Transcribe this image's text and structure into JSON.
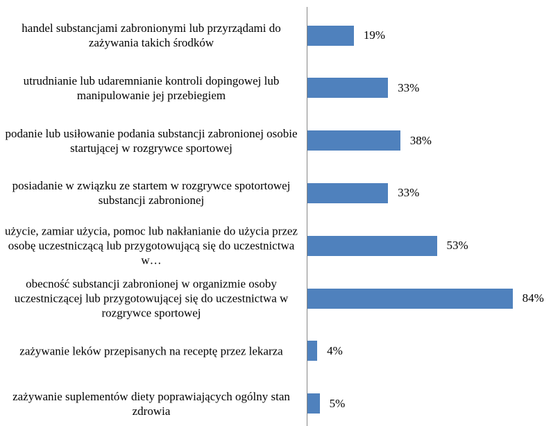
{
  "chart_data": {
    "type": "bar",
    "orientation": "horizontal",
    "color": "#4f81bd",
    "categories": [
      "handel substancjami zabronionymi lub przyrządami do zażywania takich środków",
      "utrudnianie lub udaremnianie kontroli dopingowej lub manipulowanie jej przebiegiem",
      "podanie lub usiłowanie podania substancji zabronionej osobie startującej w rozgrywce sportowej",
      "posiadanie w związku ze startem w rozgrywce spotortowej substancji zabronionej",
      "użycie, zamiar użycia, pomoc lub nakłanianie do użycia przez osobę uczestniczącą lub przygotowującą się do uczestnictwa w…",
      "obecność substancji zabronionej w organizmie osoby uczestniczącej lub przygotowującej się do uczestnictwa w rozgrywce sportowej",
      "zażywanie leków przepisanych na receptę przez lekarza",
      "zażywanie suplementów diety poprawiających ogólny stan zdrowia"
    ],
    "values": [
      19,
      33,
      38,
      33,
      53,
      84,
      4,
      5
    ],
    "value_labels": [
      "19%",
      "33%",
      "38%",
      "33%",
      "53%",
      "84%",
      "4%",
      "5%"
    ]
  }
}
